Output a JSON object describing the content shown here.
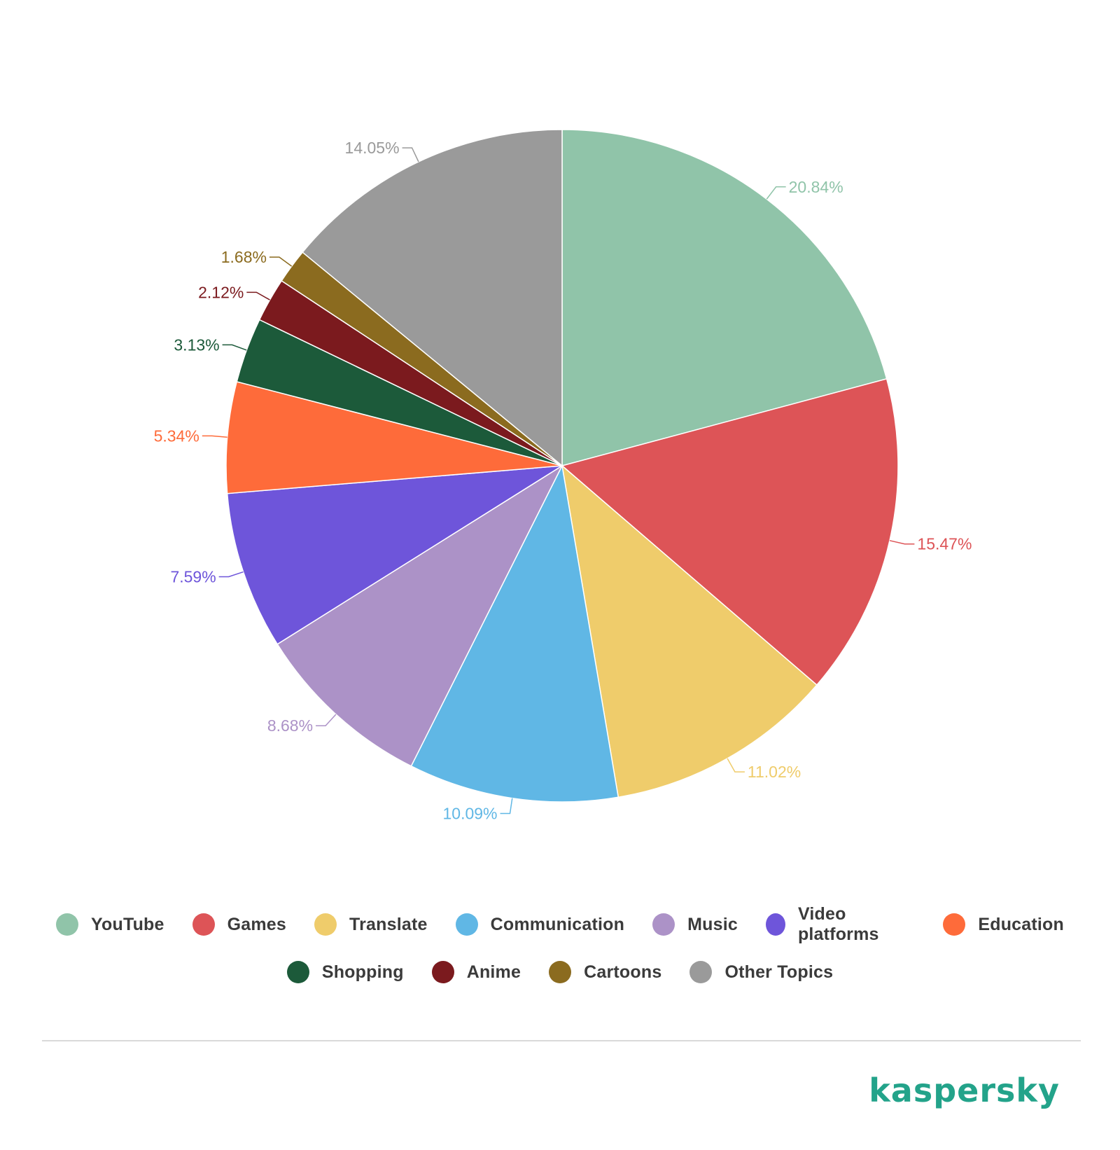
{
  "chart_data": {
    "type": "pie",
    "slices": [
      {
        "name": "YouTube",
        "value": 20.84,
        "label": "20.84%",
        "color": "#90c4a9"
      },
      {
        "name": "Games",
        "value": 15.47,
        "label": "15.47%",
        "color": "#dd5457"
      },
      {
        "name": "Translate",
        "value": 11.02,
        "label": "11.02%",
        "color": "#efcc6b"
      },
      {
        "name": "Communication",
        "value": 10.09,
        "label": "10.09%",
        "color": "#60b7e5"
      },
      {
        "name": "Music",
        "value": 8.68,
        "label": "8.68%",
        "color": "#ac92c7"
      },
      {
        "name": "Video platforms",
        "value": 7.59,
        "label": "7.59%",
        "color": "#6e55da"
      },
      {
        "name": "Education",
        "value": 5.34,
        "label": "5.34%",
        "color": "#fe6b3a"
      },
      {
        "name": "Shopping",
        "value": 3.13,
        "label": "3.13%",
        "color": "#1c5a3a"
      },
      {
        "name": "Anime",
        "value": 2.12,
        "label": "2.12%",
        "color": "#7b1a1e"
      },
      {
        "name": "Cartoons",
        "value": 1.68,
        "label": "1.68%",
        "color": "#8b6b1f"
      },
      {
        "name": "Other Topics",
        "value": 14.05,
        "label": "14.05%",
        "color": "#9a9a9a"
      }
    ],
    "legend_position": "bottom"
  },
  "brand": {
    "text": "kaspersky",
    "color": "#23a38a"
  }
}
